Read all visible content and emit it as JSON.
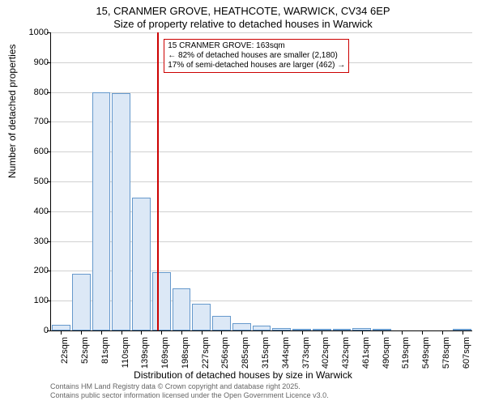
{
  "title_line1": "15, CRANMER GROVE, HEATHCOTE, WARWICK, CV34 6EP",
  "title_line2": "Size of property relative to detached houses in Warwick",
  "ylabel": "Number of detached properties",
  "xlabel": "Distribution of detached houses by size in Warwick",
  "chart": {
    "type": "histogram",
    "ylim": [
      0,
      1000
    ],
    "ytick_step": 100,
    "background_color": "#ffffff",
    "grid_color": "#d0d0d0",
    "bar_fill": "#dce8f6",
    "bar_border": "#6699cc",
    "refline_x_value": 163,
    "refline_color": "#cc0000",
    "x_categories": [
      "22sqm",
      "52sqm",
      "81sqm",
      "110sqm",
      "139sqm",
      "169sqm",
      "198sqm",
      "227sqm",
      "256sqm",
      "285sqm",
      "315sqm",
      "344sqm",
      "373sqm",
      "402sqm",
      "432sqm",
      "461sqm",
      "490sqm",
      "519sqm",
      "549sqm",
      "578sqm",
      "607sqm"
    ],
    "bar_values": [
      18,
      190,
      800,
      795,
      445,
      195,
      140,
      90,
      50,
      25,
      15,
      8,
      3,
      3,
      2,
      8,
      2,
      0,
      0,
      0,
      2
    ]
  },
  "annotation": {
    "line1": "15 CRANMER GROVE: 163sqm",
    "line2": "← 82% of detached houses are smaller (2,180)",
    "line3": "17% of semi-detached houses are larger (462) →",
    "border_color": "#cc0000"
  },
  "footer_line1": "Contains HM Land Registry data © Crown copyright and database right 2025.",
  "footer_line2": "Contains public sector information licensed under the Open Government Licence v3.0."
}
